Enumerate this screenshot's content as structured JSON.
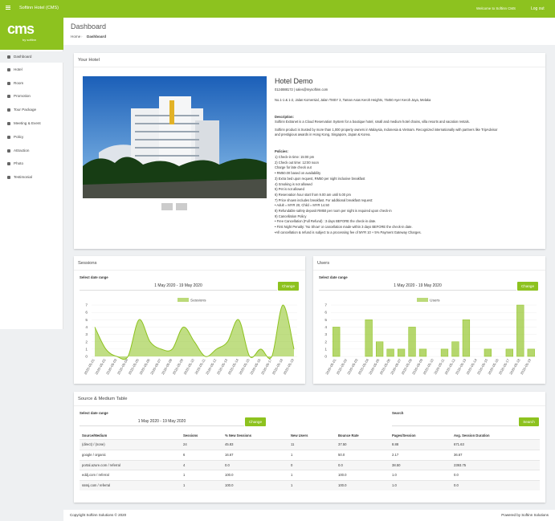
{
  "topbar": {
    "app": "Softinn Hotel (CMS)",
    "welcome": "Welcome to Softinn CMS",
    "logout": "Log out"
  },
  "sidebar": {
    "logo": "cms",
    "logo_sub": "by softinn",
    "items": [
      "Dashboard",
      "Hotel",
      "Room",
      "Promotion",
      "Tour Package",
      "Meeting & Event",
      "Policy",
      "Attraction",
      "Photo",
      "Testimonial"
    ]
  },
  "header": {
    "title": "Dashboard",
    "breadcrumb": [
      "Home",
      "Dashboard"
    ]
  },
  "hotel": {
    "card_title": "Your Hotel",
    "name": "Hotel Demo",
    "contact": "0124888172 | sales@mysoftinn.com",
    "address": "No.1-1 & 1-2, Jalan Komersial, Jalan TMSY 3, Taman Asas Keroh Heights, 75450 Ayer Keroh Jaya, Melaka",
    "description_title": "Description:",
    "description": [
      "Softinn Extranet is a Cloud Reservation System for a boutique hotel, small and medium hotel chains, villa resorts and vacation rentals.",
      "Softinn product is trusted by more than 1,000 property owners in Malaysia, Indonesia & Vietnam. Recognized internationally with partners like TripAdvisor",
      "and prestigious awards in Hong Kong, Singapore, Japan & Korea."
    ],
    "policies_title": "Policies:",
    "policies": [
      "1) Check-in time: 15:00 pm",
      "2) Check out time: 12:00 noon",
      "Charge for late check out",
      "• RM50.00 based on availability",
      "3) Extra bed upon request, RM50 per night inclusive breakfast",
      "4) Smoking is not allowed",
      "5) Pet is not allowed",
      "6) Reservation hour start from 9.00 am until 5.00 pm",
      "7) Price shown includes breakfast. For additional breakfast request:",
      "• Adult = MYR 20, Child = MYR 14.50",
      "8) Refundable safety deposit RM50 per room per night is required upon check-in",
      "9) Cancellation Policy",
      "• Free Cancellation (Full Refund) : 3 days BEFORE the check-in date.",
      "• First Night Penalty: 'No Show' or cancellation made within 3 days BEFORE the check-in date.",
      "•All cancellation & refund is subject to a processing fee of MYR 10 + 5% Payment Gateway Charges."
    ]
  },
  "chart_data": [
    {
      "type": "area",
      "title": "Sessions",
      "date_label": "Select date range",
      "date_range": "1 May 2020 - 19 May 2020",
      "button": "Change",
      "categories": [
        "2020-05-01",
        "2020-05-02",
        "2020-05-03",
        "2020-05-04",
        "2020-05-05",
        "2020-05-06",
        "2020-05-07",
        "2020-05-08",
        "2020-05-09",
        "2020-05-10",
        "2020-05-11",
        "2020-05-12",
        "2020-05-13",
        "2020-05-14",
        "2020-05-15",
        "2020-05-16",
        "2020-05-17",
        "2020-05-18",
        "2020-05-19"
      ],
      "series": [
        {
          "name": "Sessions",
          "color": "#8dc21f",
          "values": [
            4,
            1,
            0,
            0,
            5,
            2,
            1,
            1,
            4,
            2,
            0,
            1,
            2,
            5,
            0,
            1,
            0,
            7,
            1
          ]
        }
      ],
      "ylim": [
        0,
        7
      ],
      "yticks": [
        0,
        1,
        2,
        3,
        4,
        5,
        6,
        7
      ],
      "grid": true
    },
    {
      "type": "bar",
      "title": "Users",
      "date_label": "Select date range",
      "date_range": "1 May 2020 - 19 May 2020",
      "button": "Change",
      "categories": [
        "2020-05-01",
        "2020-05-02",
        "2020-05-03",
        "2020-05-04",
        "2020-05-05",
        "2020-05-06",
        "2020-05-07",
        "2020-05-08",
        "2020-05-09",
        "2020-05-10",
        "2020-05-11",
        "2020-05-12",
        "2020-05-13",
        "2020-05-14",
        "2020-05-15",
        "2020-05-16",
        "2020-05-17",
        "2020-05-18",
        "2020-05-19"
      ],
      "series": [
        {
          "name": "Users",
          "color": "#8dc21f",
          "values": [
            4,
            0,
            0,
            5,
            2,
            1,
            1,
            4,
            1,
            0,
            1,
            2,
            5,
            0,
            1,
            0,
            1,
            7,
            1
          ]
        }
      ],
      "ylim": [
        0,
        7
      ],
      "yticks": [
        0,
        1,
        2,
        3,
        4,
        5,
        6,
        7
      ],
      "grid": true
    }
  ],
  "table": {
    "title": "Source & Medium Table",
    "date_label": "Select date range",
    "date_range": "1 May 2020 - 19 May 2020",
    "button": "Change",
    "search_label": "Search",
    "search_button": "Search",
    "columns": [
      "Source/Medium",
      "Sessions",
      "% New Sessions",
      "New Users",
      "Bounce Rate",
      "Pages/Session",
      "Avg. Session Duration"
    ],
    "rows": [
      [
        "(direct) / (none)",
        "24",
        "45.83",
        "11",
        "37.50",
        "8.88",
        "671.63"
      ],
      [
        "google / organic",
        "6",
        "16.67",
        "1",
        "50.0",
        "2.17",
        "36.67"
      ],
      [
        "portal.azure.com / referral",
        "4",
        "0.0",
        "0",
        "0.0",
        "38.50",
        "2393.75"
      ],
      [
        "eddj.com / referral",
        "1",
        "100.0",
        "1",
        "100.0",
        "1.0",
        "0.0"
      ],
      [
        "ssssj.com / referral",
        "1",
        "100.0",
        "1",
        "100.0",
        "1.0",
        "0.0"
      ]
    ]
  },
  "footer": {
    "copyright": "Copyright Softinn Solutions © 2020",
    "powered": "Powered by Softinn Solutions"
  }
}
